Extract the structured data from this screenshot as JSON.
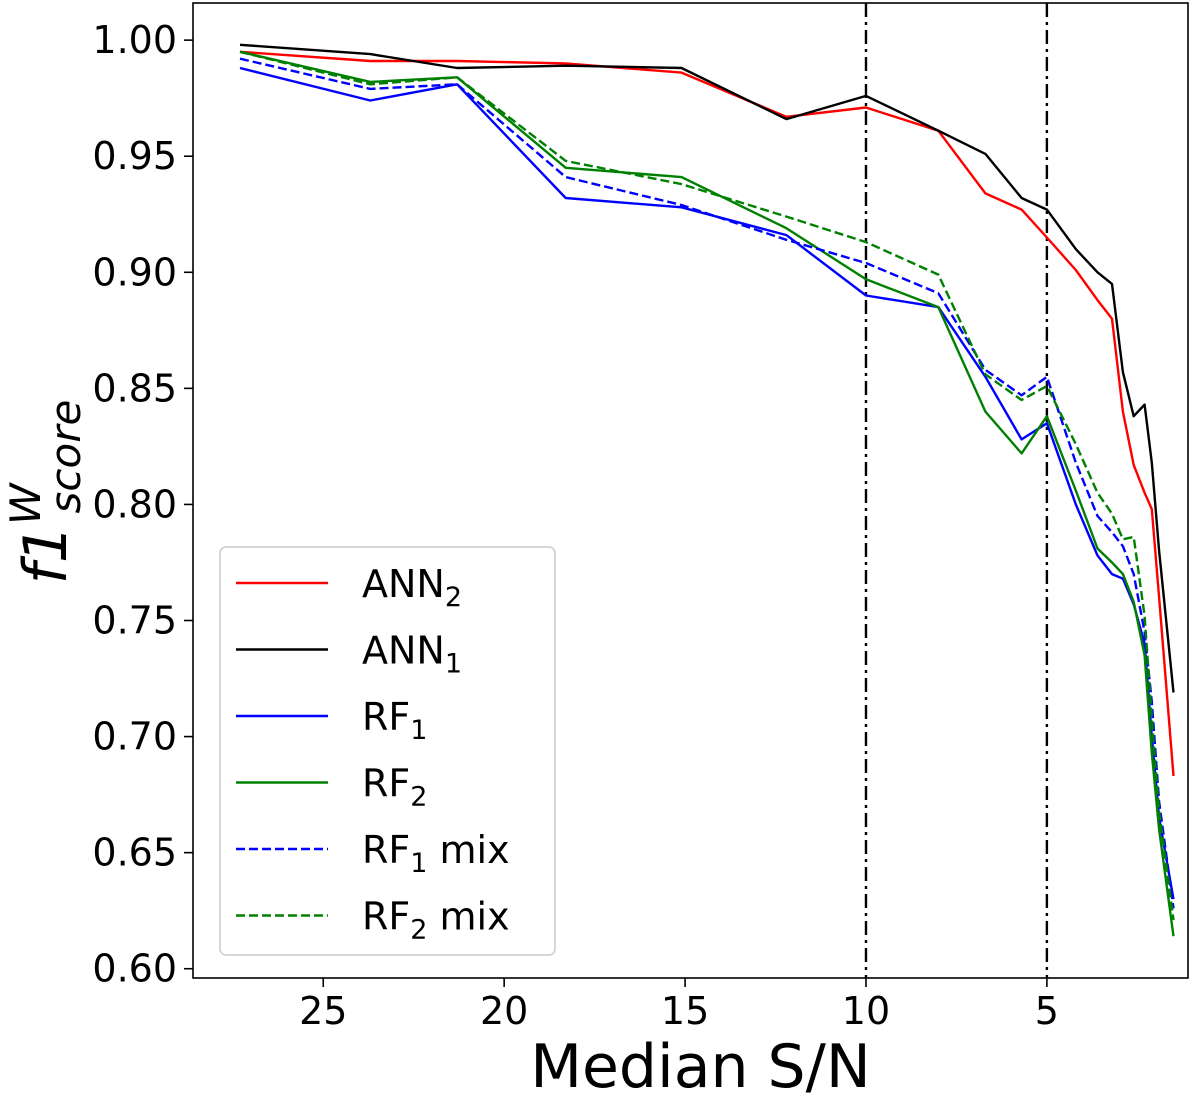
{
  "chart_data": {
    "type": "line",
    "title": "",
    "xlabel": "Median S/N",
    "ylabel": {
      "base": "f1",
      "sup": "W",
      "sub": "score"
    },
    "xlim": [
      28.6,
      1.1
    ],
    "ylim": [
      0.596,
      1.016
    ],
    "x_ticks": [
      25,
      20,
      15,
      10,
      5
    ],
    "y_ticks": [
      0.6,
      0.65,
      0.7,
      0.75,
      0.8,
      0.85,
      0.9,
      0.95,
      1.0
    ],
    "y_tick_labels": [
      "0.60",
      "0.65",
      "0.70",
      "0.75",
      "0.80",
      "0.85",
      "0.90",
      "0.95",
      "1.00"
    ],
    "vlines": [
      10,
      5
    ],
    "legend_position": "lower-left",
    "series": [
      {
        "name": "ANN",
        "sub": "2",
        "suffix": "",
        "color": "#ff0000",
        "dash": "solid",
        "points": [
          [
            27.3,
            0.995
          ],
          [
            23.7,
            0.991
          ],
          [
            21.3,
            0.991
          ],
          [
            18.3,
            0.99
          ],
          [
            15.1,
            0.986
          ],
          [
            12.2,
            0.967
          ],
          [
            10,
            0.971
          ],
          [
            8,
            0.961
          ],
          [
            6.7,
            0.934
          ],
          [
            5.7,
            0.927
          ],
          [
            5,
            0.915
          ],
          [
            4.2,
            0.901
          ],
          [
            3.6,
            0.888
          ],
          [
            3.2,
            0.88
          ],
          [
            2.9,
            0.84
          ],
          [
            2.6,
            0.817
          ],
          [
            2.3,
            0.805
          ],
          [
            2.1,
            0.798
          ],
          [
            1.9,
            0.76
          ],
          [
            1.5,
            0.683
          ]
        ]
      },
      {
        "name": "ANN",
        "sub": "1",
        "suffix": "",
        "color": "#000000",
        "dash": "solid",
        "points": [
          [
            27.3,
            0.998
          ],
          [
            23.7,
            0.994
          ],
          [
            21.3,
            0.988
          ],
          [
            18.3,
            0.989
          ],
          [
            15.1,
            0.988
          ],
          [
            12.2,
            0.966
          ],
          [
            10,
            0.976
          ],
          [
            8,
            0.961
          ],
          [
            6.7,
            0.951
          ],
          [
            5.7,
            0.932
          ],
          [
            5,
            0.927
          ],
          [
            4.2,
            0.91
          ],
          [
            3.6,
            0.9
          ],
          [
            3.2,
            0.895
          ],
          [
            2.9,
            0.857
          ],
          [
            2.6,
            0.838
          ],
          [
            2.3,
            0.843
          ],
          [
            2.1,
            0.818
          ],
          [
            1.9,
            0.78
          ],
          [
            1.5,
            0.719
          ]
        ]
      },
      {
        "name": "RF",
        "sub": "1",
        "suffix": "",
        "color": "#0000ff",
        "dash": "solid",
        "points": [
          [
            27.3,
            0.988
          ],
          [
            23.7,
            0.974
          ],
          [
            21.3,
            0.981
          ],
          [
            18.3,
            0.932
          ],
          [
            15.1,
            0.928
          ],
          [
            12.2,
            0.916
          ],
          [
            10,
            0.89
          ],
          [
            8,
            0.885
          ],
          [
            6.7,
            0.855
          ],
          [
            5.7,
            0.828
          ],
          [
            5,
            0.835
          ],
          [
            4.2,
            0.8
          ],
          [
            3.6,
            0.778
          ],
          [
            3.2,
            0.77
          ],
          [
            2.9,
            0.768
          ],
          [
            2.6,
            0.757
          ],
          [
            2.3,
            0.74
          ],
          [
            2.1,
            0.7
          ],
          [
            1.9,
            0.665
          ],
          [
            1.5,
            0.63
          ]
        ]
      },
      {
        "name": "RF",
        "sub": "2",
        "suffix": "",
        "color": "#008000",
        "dash": "solid",
        "points": [
          [
            27.3,
            0.995
          ],
          [
            23.7,
            0.982
          ],
          [
            21.3,
            0.984
          ],
          [
            18.3,
            0.945
          ],
          [
            15.1,
            0.941
          ],
          [
            12.2,
            0.919
          ],
          [
            10,
            0.897
          ],
          [
            8,
            0.885
          ],
          [
            6.7,
            0.84
          ],
          [
            5.7,
            0.822
          ],
          [
            5,
            0.838
          ],
          [
            4.2,
            0.806
          ],
          [
            3.6,
            0.781
          ],
          [
            3.2,
            0.775
          ],
          [
            2.9,
            0.77
          ],
          [
            2.6,
            0.758
          ],
          [
            2.3,
            0.735
          ],
          [
            2.1,
            0.693
          ],
          [
            1.9,
            0.66
          ],
          [
            1.5,
            0.614
          ]
        ]
      },
      {
        "name": "RF",
        "sub": "1",
        "suffix": " mix",
        "color": "#0000ff",
        "dash": "dashed",
        "points": [
          [
            27.3,
            0.992
          ],
          [
            23.7,
            0.979
          ],
          [
            21.3,
            0.981
          ],
          [
            18.3,
            0.941
          ],
          [
            15.1,
            0.929
          ],
          [
            12.2,
            0.914
          ],
          [
            10,
            0.904
          ],
          [
            8,
            0.891
          ],
          [
            6.7,
            0.858
          ],
          [
            5.7,
            0.847
          ],
          [
            5,
            0.855
          ],
          [
            4.2,
            0.818
          ],
          [
            3.6,
            0.795
          ],
          [
            3.2,
            0.788
          ],
          [
            2.9,
            0.782
          ],
          [
            2.6,
            0.77
          ],
          [
            2.3,
            0.745
          ],
          [
            2.1,
            0.715
          ],
          [
            1.9,
            0.672
          ],
          [
            1.5,
            0.626
          ]
        ]
      },
      {
        "name": "RF",
        "sub": "2",
        "suffix": " mix",
        "color": "#008000",
        "dash": "dashed",
        "points": [
          [
            27.3,
            0.995
          ],
          [
            23.7,
            0.981
          ],
          [
            21.3,
            0.984
          ],
          [
            18.3,
            0.948
          ],
          [
            15.1,
            0.938
          ],
          [
            12.2,
            0.924
          ],
          [
            10,
            0.913
          ],
          [
            8,
            0.899
          ],
          [
            6.7,
            0.856
          ],
          [
            5.7,
            0.845
          ],
          [
            5,
            0.851
          ],
          [
            4.2,
            0.826
          ],
          [
            3.6,
            0.805
          ],
          [
            3.2,
            0.796
          ],
          [
            2.9,
            0.785
          ],
          [
            2.6,
            0.786
          ],
          [
            2.3,
            0.752
          ],
          [
            2.1,
            0.708
          ],
          [
            1.9,
            0.668
          ],
          [
            1.5,
            0.621
          ]
        ]
      }
    ]
  }
}
